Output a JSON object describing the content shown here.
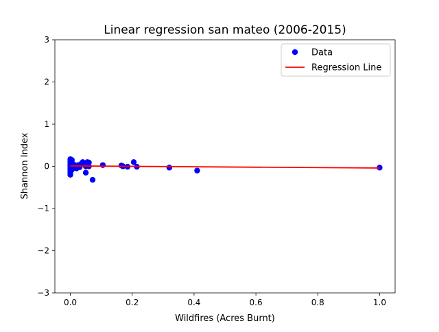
{
  "chart_data": {
    "type": "scatter",
    "title": "Linear regression san mateo (2006-2015)",
    "xlabel": "Wildfires (Acres Burnt)",
    "ylabel": "Shannon Index",
    "xlim": [
      -0.05,
      1.05
    ],
    "ylim": [
      -3,
      3
    ],
    "xticks": [
      0.0,
      0.2,
      0.4,
      0.6,
      0.8,
      1.0
    ],
    "xtick_labels": [
      "0.0",
      "0.2",
      "0.4",
      "0.6",
      "0.8",
      "1.0"
    ],
    "yticks": [
      -3,
      -2,
      -1,
      0,
      1,
      2,
      3
    ],
    "ytick_labels": [
      "−3",
      "−2",
      "−1",
      "0",
      "1",
      "2",
      "3"
    ],
    "grid": false,
    "legend_position": "top-right",
    "series": [
      {
        "name": "Data",
        "kind": "scatter",
        "color": "#0000ff",
        "points": [
          [
            0.0,
            0.17
          ],
          [
            0.0,
            0.12
          ],
          [
            0.0,
            0.08
          ],
          [
            0.0,
            0.04
          ],
          [
            0.0,
            0.0
          ],
          [
            0.0,
            -0.05
          ],
          [
            0.0,
            -0.1
          ],
          [
            0.0,
            -0.15
          ],
          [
            0.0,
            -0.2
          ],
          [
            0.005,
            0.15
          ],
          [
            0.005,
            0.06
          ],
          [
            0.005,
            -0.02
          ],
          [
            0.005,
            -0.08
          ],
          [
            0.01,
            0.05
          ],
          [
            0.01,
            -0.03
          ],
          [
            0.015,
            0.02
          ],
          [
            0.02,
            -0.05
          ],
          [
            0.025,
            0.03
          ],
          [
            0.03,
            -0.02
          ],
          [
            0.035,
            0.06
          ],
          [
            0.04,
            0.1
          ],
          [
            0.045,
            0.04
          ],
          [
            0.05,
            -0.15
          ],
          [
            0.05,
            0.0
          ],
          [
            0.055,
            0.1
          ],
          [
            0.06,
            0.09
          ],
          [
            0.06,
            0.0
          ],
          [
            0.072,
            -0.32
          ],
          [
            0.105,
            0.03
          ],
          [
            0.165,
            0.02
          ],
          [
            0.17,
            0.0
          ],
          [
            0.185,
            -0.01
          ],
          [
            0.205,
            0.1
          ],
          [
            0.215,
            -0.01
          ],
          [
            0.32,
            -0.03
          ],
          [
            0.41,
            -0.1
          ],
          [
            1.0,
            -0.03
          ]
        ]
      },
      {
        "name": "Regression Line",
        "kind": "line",
        "color": "#ff0000",
        "points": [
          [
            0.0,
            0.01
          ],
          [
            1.0,
            -0.04
          ]
        ]
      }
    ]
  }
}
